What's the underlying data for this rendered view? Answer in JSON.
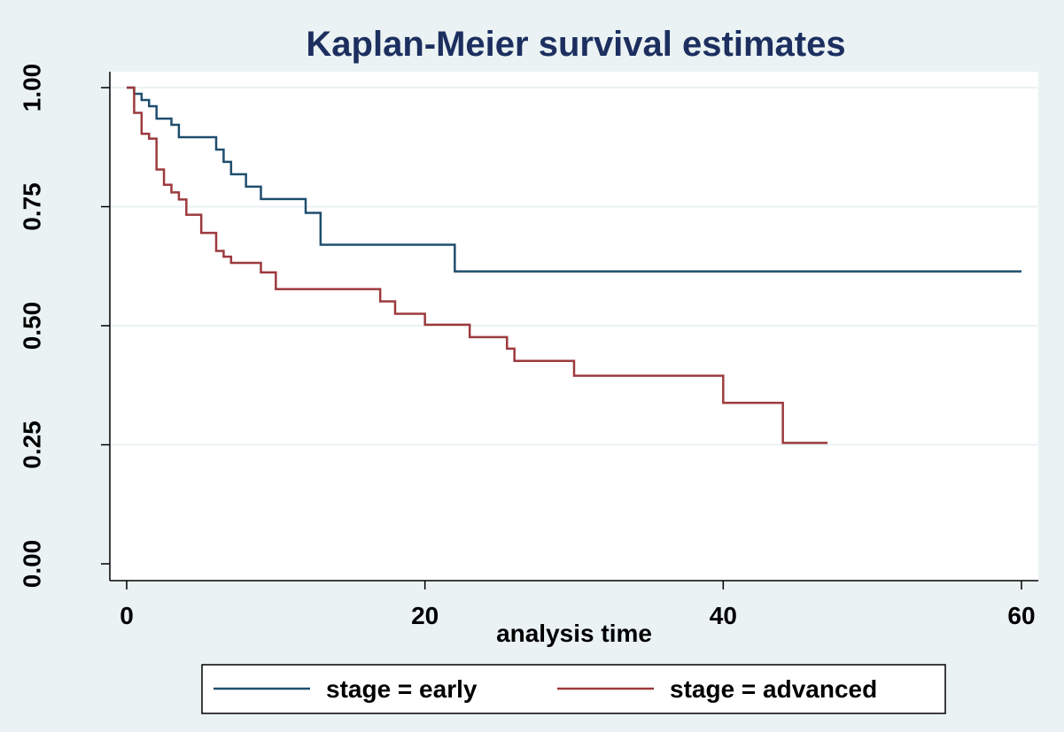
{
  "chart_data": {
    "type": "line",
    "step": true,
    "title": "Kaplan-Meier survival estimates",
    "xlabel": "analysis time",
    "ylabel": "",
    "xlim": [
      0,
      60
    ],
    "ylim": [
      0,
      1
    ],
    "xticks": [
      0,
      20,
      40,
      60
    ],
    "xtick_labels": [
      "0",
      "20",
      "40",
      "60"
    ],
    "yticks": [
      0,
      0.25,
      0.5,
      0.75,
      1.0
    ],
    "ytick_labels": [
      "0.00",
      "0.25",
      "0.50",
      "0.75",
      "1.00"
    ],
    "grid": true,
    "legend_position": "bottom",
    "colors": {
      "early": "#1f4e6e",
      "advanced": "#9c3a3e",
      "grid": "#eaf2f3",
      "title": "#1c2f5f"
    },
    "series": [
      {
        "name": "stage = early",
        "color": "#1f4e6e",
        "x": [
          0,
          0.5,
          1,
          1.5,
          2,
          3,
          3.5,
          6,
          6.5,
          7,
          8,
          9,
          12,
          13,
          22,
          60
        ],
        "y": [
          1.0,
          0.987,
          0.974,
          0.961,
          0.935,
          0.922,
          0.896,
          0.87,
          0.844,
          0.818,
          0.792,
          0.766,
          0.737,
          0.67,
          0.614,
          0.614
        ]
      },
      {
        "name": "stage = advanced",
        "color": "#9c3a3e",
        "x": [
          0,
          0.5,
          1,
          1.5,
          2,
          2.5,
          3,
          3.5,
          4,
          5,
          6,
          6.5,
          7,
          9,
          10,
          17,
          18,
          20,
          23,
          25.5,
          26,
          30,
          40,
          44,
          47
        ],
        "y": [
          1.0,
          0.947,
          0.903,
          0.893,
          0.828,
          0.796,
          0.78,
          0.765,
          0.733,
          0.695,
          0.657,
          0.645,
          0.632,
          0.612,
          0.577,
          0.551,
          0.525,
          0.502,
          0.476,
          0.452,
          0.426,
          0.395,
          0.338,
          0.254,
          0.254
        ]
      }
    ]
  }
}
